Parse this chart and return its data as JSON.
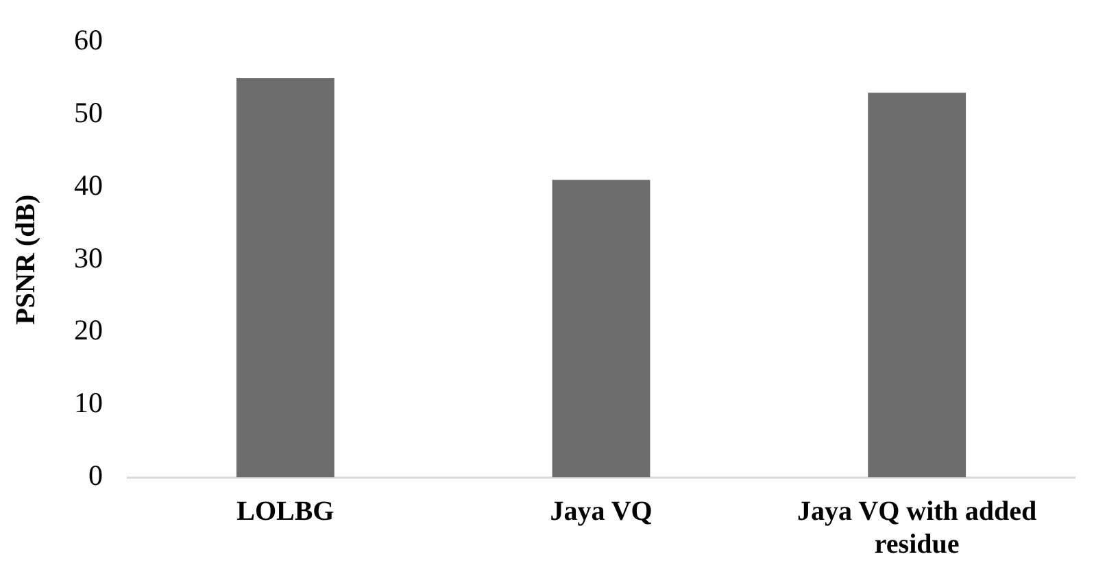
{
  "chart_data": {
    "type": "bar",
    "ylabel": "PSNR (dB)",
    "categories": [
      "LOLBG",
      "Jaya VQ",
      "Jaya VQ with added residue"
    ],
    "values": [
      55,
      41,
      53
    ],
    "color": "#6d6d6d",
    "ylim": [
      0,
      60
    ],
    "yticks": [
      0,
      10,
      20,
      30,
      40,
      50,
      60
    ],
    "grid": false,
    "legend": false
  }
}
